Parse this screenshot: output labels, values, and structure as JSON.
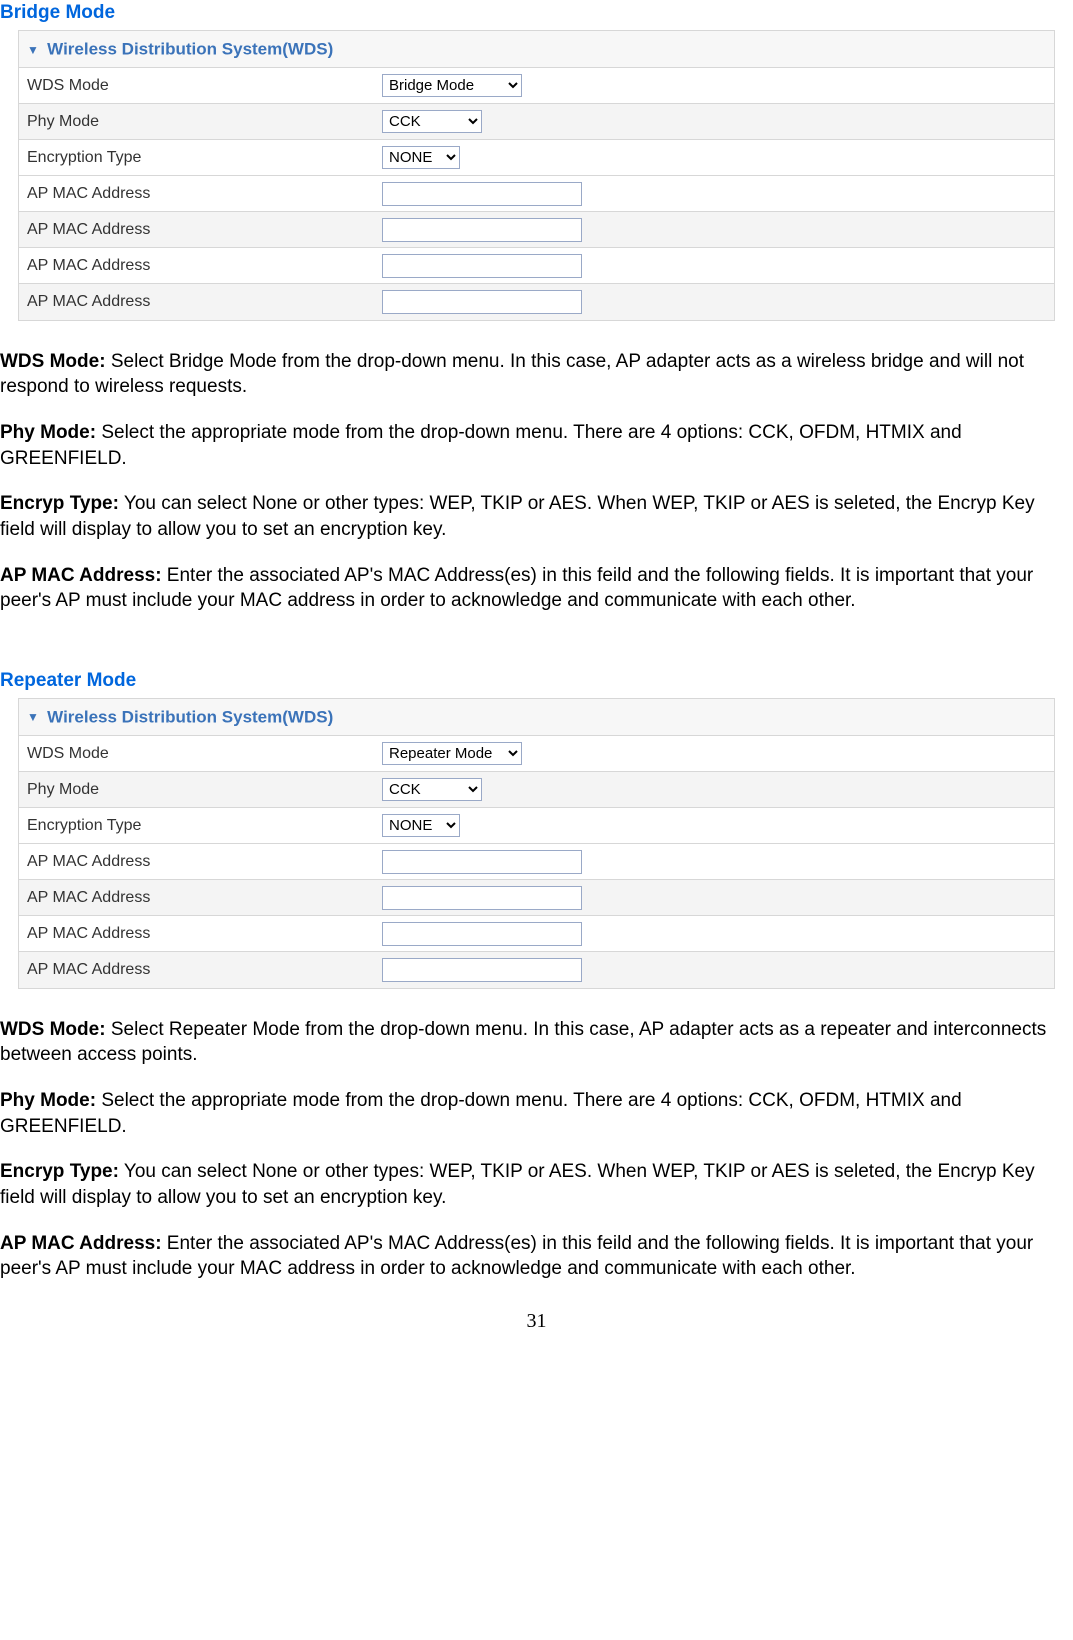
{
  "section1": {
    "heading": "Bridge Mode",
    "panel_title": "Wireless Distribution System(WDS)",
    "rows": [
      {
        "label": "WDS Mode",
        "type": "select",
        "value": "Bridge Mode",
        "cls": "wide"
      },
      {
        "label": "Phy Mode",
        "type": "select",
        "value": "CCK",
        "cls": "med"
      },
      {
        "label": "Encryption Type",
        "type": "select",
        "value": "NONE",
        "cls": "sm"
      },
      {
        "label": "AP MAC Address",
        "type": "text",
        "value": ""
      },
      {
        "label": "AP MAC Address",
        "type": "text",
        "value": ""
      },
      {
        "label": "AP MAC Address",
        "type": "text",
        "value": ""
      },
      {
        "label": "AP MAC Address",
        "type": "text",
        "value": ""
      }
    ],
    "paras": [
      {
        "bold": "WDS Mode:",
        "text": " Select Bridge Mode from the drop-down menu. In this case, AP adapter acts as a wireless bridge and will not respond to wireless requests."
      },
      {
        "bold": "Phy Mode:",
        "text": " Select the appropriate mode from the drop-down menu. There are 4 options: CCK, OFDM, HTMIX and GREENFIELD."
      },
      {
        "bold": "Encryp Type:",
        "text": " You can select None or other types: WEP, TKIP or AES. When  WEP, TKIP or AES is seleted, the Encryp Key field will display to allow you to set an encryption key."
      },
      {
        "bold": "AP MAC Address:",
        "text": "  Enter the associated AP's MAC Address(es) in this feild and the following fields. It is important that your peer's AP must include your MAC address in order to acknowledge and communicate with each other."
      }
    ]
  },
  "section2": {
    "heading": "Repeater Mode",
    "panel_title": "Wireless Distribution System(WDS)",
    "rows": [
      {
        "label": "WDS Mode",
        "type": "select",
        "value": "Repeater Mode",
        "cls": "wide"
      },
      {
        "label": "Phy Mode",
        "type": "select",
        "value": "CCK",
        "cls": "med"
      },
      {
        "label": "Encryption Type",
        "type": "select",
        "value": "NONE",
        "cls": "sm"
      },
      {
        "label": "AP MAC Address",
        "type": "text",
        "value": ""
      },
      {
        "label": "AP MAC Address",
        "type": "text",
        "value": ""
      },
      {
        "label": "AP MAC Address",
        "type": "text",
        "value": ""
      },
      {
        "label": "AP MAC Address",
        "type": "text",
        "value": ""
      }
    ],
    "paras": [
      {
        "bold": "WDS Mode:",
        "text": " Select Repeater Mode from the drop-down menu. In this case, AP adapter acts as a repeater and interconnects between access points."
      },
      {
        "bold": "Phy Mode:",
        "text": " Select the appropriate mode from the drop-down menu. There are 4 options: CCK, OFDM, HTMIX and GREENFIELD."
      },
      {
        "bold": "Encryp Type:",
        "text": " You can select None or other types: WEP, TKIP or AES. When  WEP, TKIP or AES is seleted, the Encryp Key field will display to allow you to set an encryption key."
      },
      {
        "bold": "AP MAC Address:",
        "text": "  Enter the associated AP's MAC Address(es) in this feild and the following fields. It is important that your peer's AP must include your MAC address in order to acknowledge and communicate with each other."
      }
    ]
  },
  "page_number": "31"
}
